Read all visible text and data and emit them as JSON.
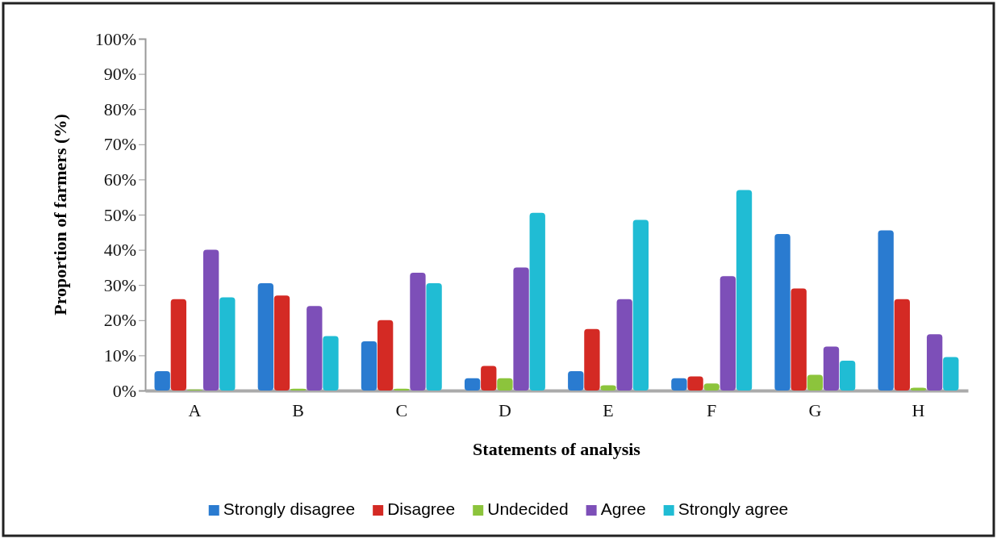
{
  "chart_data": {
    "type": "bar",
    "xlabel": "Statements of analysis",
    "ylabel": "Proportion of farmers (%)",
    "categories": [
      "A",
      "B",
      "C",
      "D",
      "E",
      "F",
      "G",
      "H"
    ],
    "series": [
      {
        "name": "Strongly disagree",
        "color": "#2a7bd0",
        "values": [
          5.5,
          30.5,
          14,
          3.5,
          5.5,
          3.5,
          44.5,
          45.5
        ]
      },
      {
        "name": "Disagree",
        "color": "#d42a24",
        "values": [
          26,
          27,
          20,
          7,
          17.5,
          4,
          29,
          26
        ]
      },
      {
        "name": "Undecided",
        "color": "#8cc43c",
        "values": [
          0.3,
          0.5,
          0.5,
          3.5,
          1.5,
          2,
          4.5,
          0.8
        ]
      },
      {
        "name": "Agree",
        "color": "#7d4fb8",
        "values": [
          40,
          24,
          33.5,
          35,
          26,
          32.5,
          12.5,
          16
        ]
      },
      {
        "name": "Strongly agree",
        "color": "#20bcd4",
        "values": [
          26.5,
          15.5,
          30.5,
          50.5,
          48.5,
          57,
          8.5,
          9.5
        ]
      }
    ],
    "ylim": [
      0,
      100
    ],
    "yticks": [
      {
        "value": 0,
        "label": "0%"
      },
      {
        "value": 10,
        "label": "10%"
      },
      {
        "value": 20,
        "label": "20%"
      },
      {
        "value": 30,
        "label": "30%"
      },
      {
        "value": 40,
        "label": "40%"
      },
      {
        "value": 50,
        "label": "50%"
      },
      {
        "value": 60,
        "label": "60%"
      },
      {
        "value": 70,
        "label": "70%"
      },
      {
        "value": 80,
        "label": "80%"
      },
      {
        "value": 90,
        "label": "90%"
      },
      {
        "value": 100,
        "label": "100%"
      }
    ],
    "grid": false,
    "legend": "bottom"
  }
}
